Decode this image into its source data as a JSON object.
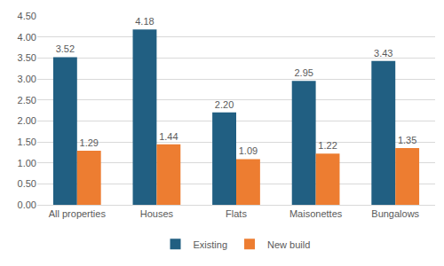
{
  "chart_data": {
    "type": "bar",
    "categories": [
      "All properties",
      "Houses",
      "Flats",
      "Maisonettes",
      "Bungalows"
    ],
    "series": [
      {
        "name": "Existing",
        "color": "#215f82",
        "values": [
          3.52,
          4.18,
          2.2,
          2.95,
          3.43
        ],
        "value_labels": [
          "3.52",
          "4.18",
          "2.20",
          "2.95",
          "3.43"
        ]
      },
      {
        "name": "New build",
        "color": "#ed7d31",
        "values": [
          1.29,
          1.44,
          1.09,
          1.22,
          1.35
        ],
        "value_labels": [
          "1.29",
          "1.44",
          "1.09",
          "1.22",
          "1.35"
        ]
      }
    ],
    "ylim": [
      0,
      4.5
    ],
    "yticks": [
      {
        "value": 0,
        "label": "0.00"
      },
      {
        "value": 0.5,
        "label": "0.50"
      },
      {
        "value": 1,
        "label": "1.00"
      },
      {
        "value": 1.5,
        "label": "1.50"
      },
      {
        "value": 2,
        "label": "2.00"
      },
      {
        "value": 2.5,
        "label": "2.50"
      },
      {
        "value": 3,
        "label": "3.00"
      },
      {
        "value": 3.5,
        "label": "3.50"
      },
      {
        "value": 4,
        "label": "4.00"
      },
      {
        "value": 4.5,
        "label": "4.50"
      }
    ],
    "grid": true,
    "legend": "bottom",
    "data_labels": true
  }
}
